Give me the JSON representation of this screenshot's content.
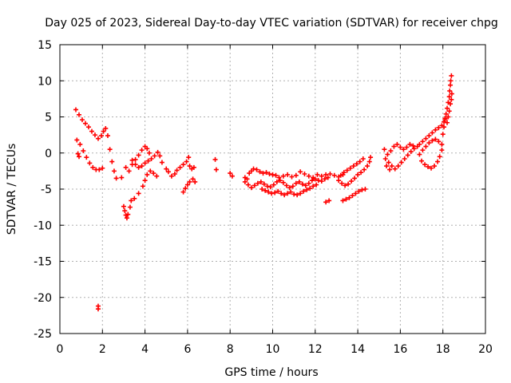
{
  "chart_data": {
    "type": "scatter",
    "title": "Day 025 of 2023, Sidereal Day-to-day VTEC variation (SDTVAR) for receiver chpg",
    "xlabel": "GPS time / hours",
    "ylabel": "SDTVAR / TECUs",
    "xlim": [
      0,
      20
    ],
    "ylim": [
      -25,
      15
    ],
    "xticks": [
      0,
      2,
      4,
      6,
      8,
      10,
      12,
      14,
      16,
      18,
      20
    ],
    "yticks": [
      -25,
      -20,
      -15,
      -10,
      -5,
      0,
      5,
      10,
      15
    ],
    "grid": true,
    "marker": "+",
    "series": [
      {
        "name": "SDTVAR",
        "color": "#ff0000",
        "points": [
          [
            0.75,
            6.0
          ],
          [
            0.9,
            5.3
          ],
          [
            1.05,
            4.6
          ],
          [
            1.2,
            4.1
          ],
          [
            1.35,
            3.6
          ],
          [
            1.5,
            3.0
          ],
          [
            1.65,
            2.5
          ],
          [
            1.8,
            2.0
          ],
          [
            1.95,
            2.4
          ],
          [
            2.05,
            3.0
          ],
          [
            2.15,
            3.4
          ],
          [
            2.25,
            2.4
          ],
          [
            2.35,
            0.5
          ],
          [
            2.45,
            -1.2
          ],
          [
            2.55,
            -2.5
          ],
          [
            2.65,
            -3.5
          ],
          [
            0.8,
            1.8
          ],
          [
            0.95,
            1.2
          ],
          [
            1.1,
            0.3
          ],
          [
            1.25,
            -0.6
          ],
          [
            1.4,
            -1.4
          ],
          [
            1.55,
            -2.0
          ],
          [
            1.7,
            -2.3
          ],
          [
            1.85,
            -2.3
          ],
          [
            2.0,
            -2.1
          ],
          [
            0.85,
            -0.1
          ],
          [
            0.9,
            -0.5
          ],
          [
            1.8,
            -21.2
          ],
          [
            1.8,
            -21.6
          ],
          [
            2.9,
            -3.4
          ],
          [
            3.0,
            -7.4
          ],
          [
            3.05,
            -8.0
          ],
          [
            3.1,
            -8.6
          ],
          [
            3.15,
            -9.0
          ],
          [
            3.2,
            -8.5
          ],
          [
            3.3,
            -7.5
          ],
          [
            3.35,
            -6.6
          ],
          [
            3.5,
            -6.3
          ],
          [
            3.7,
            -5.6
          ],
          [
            3.9,
            -4.6
          ],
          [
            4.0,
            -3.8
          ],
          [
            4.1,
            -3.0
          ],
          [
            4.25,
            -2.5
          ],
          [
            4.4,
            -2.8
          ],
          [
            4.55,
            -3.2
          ],
          [
            3.1,
            -2.0
          ],
          [
            3.25,
            -2.5
          ],
          [
            3.4,
            -1.6
          ],
          [
            3.55,
            -0.9
          ],
          [
            3.7,
            -0.3
          ],
          [
            3.85,
            0.4
          ],
          [
            4.0,
            0.9
          ],
          [
            4.1,
            0.6
          ],
          [
            4.2,
            0.0
          ],
          [
            3.4,
            -1.0
          ],
          [
            3.55,
            -1.6
          ],
          [
            3.7,
            -2.0
          ],
          [
            3.85,
            -1.8
          ],
          [
            4.0,
            -1.4
          ],
          [
            4.15,
            -1.1
          ],
          [
            4.3,
            -0.8
          ],
          [
            4.45,
            -0.4
          ],
          [
            4.6,
            0.1
          ],
          [
            4.7,
            -0.4
          ],
          [
            4.8,
            -1.3
          ],
          [
            5.0,
            -2.2
          ],
          [
            5.1,
            -2.6
          ],
          [
            5.25,
            -3.2
          ],
          [
            5.4,
            -2.9
          ],
          [
            5.5,
            -2.4
          ],
          [
            5.65,
            -2.0
          ],
          [
            5.8,
            -1.6
          ],
          [
            5.95,
            -1.2
          ],
          [
            6.05,
            -0.6
          ],
          [
            6.1,
            -1.8
          ],
          [
            6.2,
            -2.2
          ],
          [
            6.3,
            -2.0
          ],
          [
            5.8,
            -5.4
          ],
          [
            5.9,
            -4.9
          ],
          [
            6.0,
            -4.4
          ],
          [
            6.1,
            -4.0
          ],
          [
            6.25,
            -3.6
          ],
          [
            6.35,
            -4.0
          ],
          [
            7.3,
            -0.9
          ],
          [
            7.35,
            -2.3
          ],
          [
            8.0,
            -2.8
          ],
          [
            8.1,
            -3.2
          ],
          [
            8.7,
            -3.4
          ],
          [
            8.8,
            -3.6
          ],
          [
            8.9,
            -2.8
          ],
          [
            9.0,
            -2.5
          ],
          [
            9.1,
            -2.2
          ],
          [
            9.25,
            -2.3
          ],
          [
            9.4,
            -2.6
          ],
          [
            9.55,
            -2.8
          ],
          [
            9.7,
            -2.7
          ],
          [
            9.85,
            -2.9
          ],
          [
            10.0,
            -3.0
          ],
          [
            10.15,
            -3.1
          ],
          [
            10.3,
            -3.4
          ],
          [
            10.5,
            -3.2
          ],
          [
            10.7,
            -3.0
          ],
          [
            10.9,
            -3.3
          ],
          [
            11.1,
            -3.1
          ],
          [
            11.3,
            -2.6
          ],
          [
            11.5,
            -2.9
          ],
          [
            11.7,
            -3.2
          ],
          [
            11.9,
            -3.4
          ],
          [
            12.1,
            -3.0
          ],
          [
            12.3,
            -3.2
          ],
          [
            12.5,
            -3.0
          ],
          [
            12.7,
            -2.9
          ],
          [
            12.9,
            -3.1
          ],
          [
            13.1,
            -3.3
          ],
          [
            13.3,
            -3.0
          ],
          [
            8.7,
            -4.0
          ],
          [
            8.85,
            -4.4
          ],
          [
            9.0,
            -4.8
          ],
          [
            9.15,
            -4.5
          ],
          [
            9.3,
            -4.2
          ],
          [
            9.45,
            -4.0
          ],
          [
            9.6,
            -4.3
          ],
          [
            9.75,
            -4.6
          ],
          [
            9.9,
            -4.7
          ],
          [
            10.05,
            -4.4
          ],
          [
            10.2,
            -4.0
          ],
          [
            10.35,
            -3.8
          ],
          [
            10.5,
            -4.1
          ],
          [
            10.65,
            -4.5
          ],
          [
            10.8,
            -4.8
          ],
          [
            10.95,
            -4.6
          ],
          [
            11.1,
            -4.2
          ],
          [
            11.25,
            -4.0
          ],
          [
            11.4,
            -4.3
          ],
          [
            11.55,
            -4.5
          ],
          [
            11.7,
            -4.2
          ],
          [
            11.85,
            -3.8
          ],
          [
            12.0,
            -3.6
          ],
          [
            12.15,
            -3.8
          ],
          [
            12.3,
            -3.9
          ],
          [
            12.45,
            -3.6
          ],
          [
            12.6,
            -3.4
          ],
          [
            9.5,
            -5.0
          ],
          [
            9.65,
            -5.2
          ],
          [
            9.8,
            -5.4
          ],
          [
            9.95,
            -5.6
          ],
          [
            10.1,
            -5.5
          ],
          [
            10.25,
            -5.3
          ],
          [
            10.4,
            -5.6
          ],
          [
            10.55,
            -5.8
          ],
          [
            10.7,
            -5.6
          ],
          [
            10.85,
            -5.4
          ],
          [
            11.0,
            -5.7
          ],
          [
            11.15,
            -5.8
          ],
          [
            11.3,
            -5.6
          ],
          [
            11.45,
            -5.3
          ],
          [
            11.6,
            -5.1
          ],
          [
            11.75,
            -4.9
          ],
          [
            11.9,
            -4.6
          ],
          [
            12.05,
            -4.4
          ],
          [
            12.5,
            -6.8
          ],
          [
            12.65,
            -6.6
          ],
          [
            13.1,
            -3.8
          ],
          [
            13.25,
            -4.2
          ],
          [
            13.4,
            -4.5
          ],
          [
            13.55,
            -4.3
          ],
          [
            13.7,
            -3.9
          ],
          [
            13.85,
            -3.5
          ],
          [
            14.0,
            -3.0
          ],
          [
            14.15,
            -2.7
          ],
          [
            14.3,
            -2.3
          ],
          [
            14.45,
            -1.8
          ],
          [
            14.55,
            -1.2
          ],
          [
            14.6,
            -0.6
          ],
          [
            13.2,
            -3.1
          ],
          [
            13.35,
            -2.7
          ],
          [
            13.5,
            -2.4
          ],
          [
            13.65,
            -2.1
          ],
          [
            13.8,
            -1.8
          ],
          [
            13.95,
            -1.5
          ],
          [
            14.1,
            -1.2
          ],
          [
            14.25,
            -0.8
          ],
          [
            13.3,
            -6.6
          ],
          [
            13.45,
            -6.4
          ],
          [
            13.6,
            -6.2
          ],
          [
            13.75,
            -5.9
          ],
          [
            13.9,
            -5.6
          ],
          [
            14.05,
            -5.3
          ],
          [
            14.2,
            -5.1
          ],
          [
            14.35,
            -5.0
          ],
          [
            15.25,
            0.5
          ],
          [
            15.4,
            -0.2
          ],
          [
            15.55,
            0.3
          ],
          [
            15.7,
            0.9
          ],
          [
            15.85,
            1.2
          ],
          [
            16.0,
            0.8
          ],
          [
            16.15,
            0.5
          ],
          [
            16.3,
            0.8
          ],
          [
            16.45,
            1.2
          ],
          [
            16.6,
            1.0
          ],
          [
            15.3,
            -0.8
          ],
          [
            15.45,
            -1.3
          ],
          [
            15.6,
            -1.8
          ],
          [
            15.75,
            -2.2
          ],
          [
            15.9,
            -1.8
          ],
          [
            16.05,
            -1.3
          ],
          [
            16.2,
            -0.8
          ],
          [
            16.35,
            -0.3
          ],
          [
            16.5,
            0.2
          ],
          [
            16.65,
            0.6
          ],
          [
            16.8,
            0.9
          ],
          [
            15.35,
            -1.8
          ],
          [
            15.5,
            -2.3
          ],
          [
            16.9,
            1.2
          ],
          [
            17.05,
            1.6
          ],
          [
            17.2,
            2.0
          ],
          [
            17.35,
            2.4
          ],
          [
            17.5,
            2.8
          ],
          [
            17.65,
            3.2
          ],
          [
            17.8,
            3.5
          ],
          [
            17.95,
            3.8
          ],
          [
            18.05,
            4.3
          ],
          [
            18.1,
            4.8
          ],
          [
            16.9,
            -0.2
          ],
          [
            17.05,
            0.4
          ],
          [
            17.2,
            0.9
          ],
          [
            17.35,
            1.4
          ],
          [
            17.5,
            1.7
          ],
          [
            17.65,
            1.9
          ],
          [
            17.8,
            1.6
          ],
          [
            17.95,
            1.2
          ],
          [
            17.0,
            -1.1
          ],
          [
            17.15,
            -1.6
          ],
          [
            17.3,
            -1.9
          ],
          [
            17.45,
            -2.1
          ],
          [
            17.6,
            -1.8
          ],
          [
            17.75,
            -1.2
          ],
          [
            17.85,
            -0.5
          ],
          [
            17.95,
            0.4
          ],
          [
            18.0,
            2.6
          ],
          [
            18.05,
            3.6
          ],
          [
            18.1,
            4.6
          ],
          [
            18.15,
            5.4
          ],
          [
            18.2,
            6.2
          ],
          [
            18.25,
            7.0
          ],
          [
            18.3,
            7.8
          ],
          [
            18.32,
            8.6
          ],
          [
            18.35,
            9.4
          ],
          [
            18.37,
            10.0
          ],
          [
            18.4,
            10.7
          ],
          [
            18.2,
            4.2
          ],
          [
            18.25,
            5.0
          ],
          [
            18.3,
            5.8
          ],
          [
            18.35,
            6.8
          ],
          [
            18.4,
            7.4
          ],
          [
            18.42,
            8.2
          ]
        ]
      }
    ]
  }
}
